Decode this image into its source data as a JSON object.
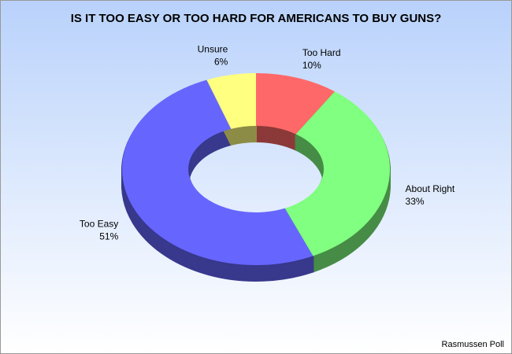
{
  "chart_data": {
    "type": "donut3d",
    "title": "IS IT TOO EASY OR TOO HARD FOR AMERICANS TO BUY GUNS?",
    "categories": [
      "Too Hard",
      "About Right",
      "Too Easy",
      "Unsure"
    ],
    "values": [
      10,
      33,
      51,
      6
    ],
    "value_labels": [
      "10%",
      "33%",
      "51%",
      "6%"
    ],
    "colors": [
      "#ff6868",
      "#80ff80",
      "#6666ff",
      "#ffff80"
    ],
    "source": "Rasmussen Poll"
  }
}
